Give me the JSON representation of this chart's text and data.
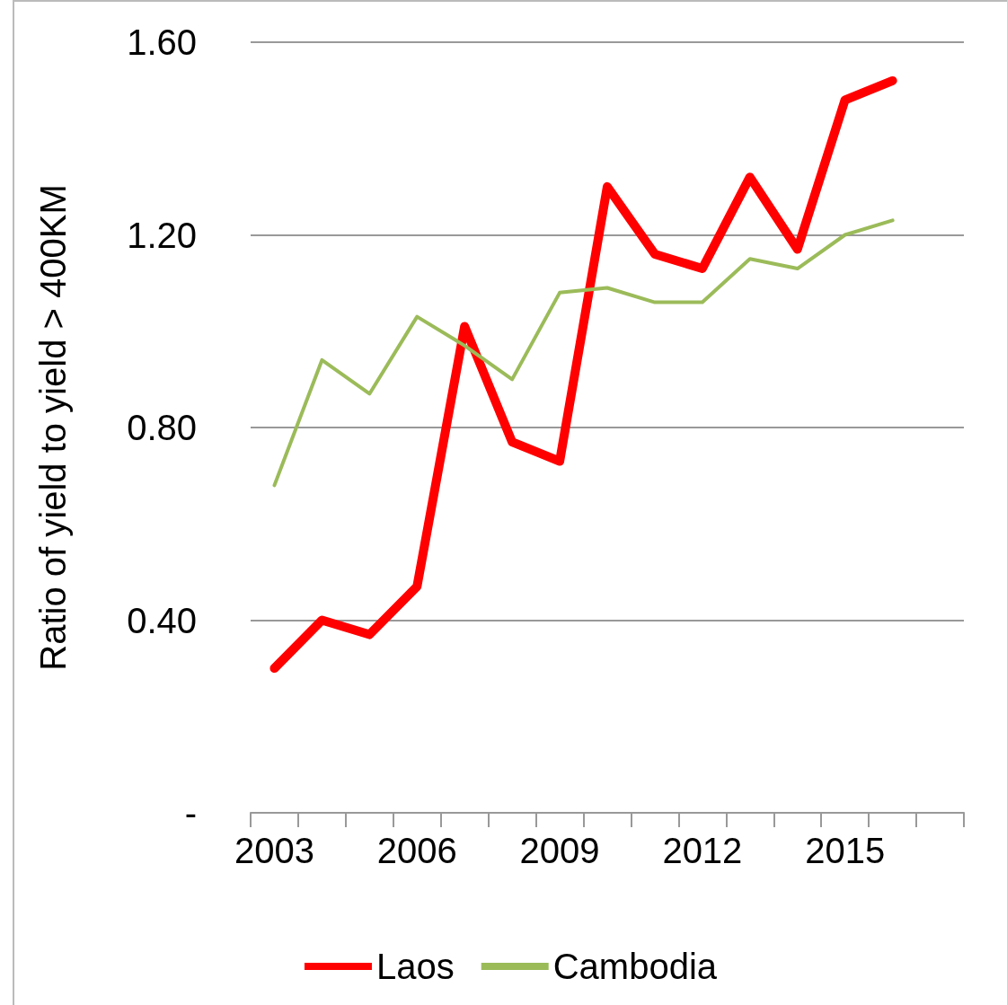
{
  "chart_data": {
    "type": "line",
    "ylabel": "Ratio of yield to yield > 400KM",
    "categories": [
      "2003",
      null,
      null,
      "2006",
      null,
      null,
      "2009",
      null,
      null,
      "2012",
      null,
      null,
      "2015",
      null,
      null
    ],
    "series": [
      {
        "name": "Laos",
        "color": "#ff0000",
        "values": [
          0.3,
          0.4,
          0.37,
          0.47,
          1.01,
          0.77,
          0.73,
          1.3,
          1.16,
          1.13,
          1.32,
          1.17,
          1.48,
          1.52,
          null
        ]
      },
      {
        "name": "Cambodia",
        "color": "#9bbb59",
        "values": [
          0.68,
          0.94,
          0.87,
          1.03,
          0.97,
          0.9,
          1.08,
          1.09,
          1.06,
          1.06,
          1.15,
          1.13,
          1.2,
          1.23,
          null
        ]
      }
    ],
    "ylim": [
      0,
      1.6
    ],
    "yticks": [
      {
        "value": 0,
        "label": "-"
      },
      {
        "value": 0.4,
        "label": "0.40"
      },
      {
        "value": 0.8,
        "label": "0.80"
      },
      {
        "value": 1.2,
        "label": "1.20"
      },
      {
        "value": 1.6,
        "label": "1.60"
      }
    ],
    "grid": "y",
    "legend": "bottom",
    "marker": "none",
    "line_style": "solid"
  }
}
